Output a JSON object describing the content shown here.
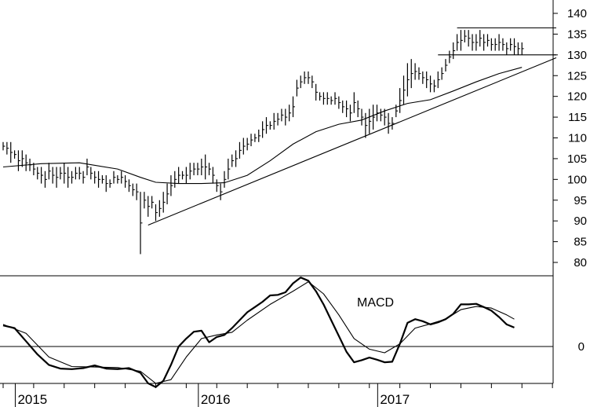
{
  "chart_data": [
    {
      "type": "line",
      "subtype": "ohlc-bar",
      "ylim": [
        76,
        141
      ],
      "yticks": [
        "140",
        "135",
        "130",
        "125",
        "120",
        "115",
        "110",
        "105",
        "100",
        "95",
        "90",
        "85",
        "80"
      ],
      "ytick_values": [
        140,
        135,
        130,
        125,
        120,
        115,
        110,
        105,
        100,
        95,
        90,
        85,
        80
      ],
      "x_range": [
        0,
        145
      ],
      "price_bars": [
        [
          0,
          107,
          109
        ],
        [
          1,
          106,
          109
        ],
        [
          2,
          104,
          109
        ],
        [
          3,
          105,
          107
        ],
        [
          4,
          102,
          107
        ],
        [
          5,
          103,
          107
        ],
        [
          6,
          102,
          106
        ],
        [
          7,
          102,
          105
        ],
        [
          8,
          101,
          104
        ],
        [
          9,
          100,
          103
        ],
        [
          10,
          99,
          103
        ],
        [
          11,
          98,
          102
        ],
        [
          12,
          100,
          104
        ],
        [
          13,
          99,
          103
        ],
        [
          14,
          98,
          103
        ],
        [
          15,
          100,
          103
        ],
        [
          16,
          99,
          104
        ],
        [
          17,
          98,
          103
        ],
        [
          18,
          99,
          102
        ],
        [
          19,
          100,
          103
        ],
        [
          20,
          100,
          103
        ],
        [
          21,
          99,
          102
        ],
        [
          22,
          101,
          105
        ],
        [
          23,
          100,
          103
        ],
        [
          24,
          99,
          102
        ],
        [
          25,
          98,
          102
        ],
        [
          26,
          99,
          101
        ],
        [
          27,
          97,
          101
        ],
        [
          28,
          98,
          100
        ],
        [
          29,
          99,
          102
        ],
        [
          30,
          99,
          101
        ],
        [
          31,
          99,
          102
        ],
        [
          32,
          98,
          101
        ],
        [
          33,
          97,
          100
        ],
        [
          34,
          96,
          99
        ],
        [
          35,
          95,
          99
        ],
        [
          36,
          82,
          97
        ],
        [
          37,
          93,
          97
        ],
        [
          38,
          91,
          96
        ],
        [
          39,
          93,
          96
        ],
        [
          40,
          90,
          94
        ],
        [
          41,
          91,
          95
        ],
        [
          42,
          92,
          97
        ],
        [
          43,
          94,
          99
        ],
        [
          44,
          96,
          101
        ],
        [
          45,
          98,
          102
        ],
        [
          46,
          99,
          103
        ],
        [
          47,
          100,
          102
        ],
        [
          48,
          99,
          103
        ],
        [
          49,
          100,
          104
        ],
        [
          50,
          101,
          104
        ],
        [
          51,
          101,
          104
        ],
        [
          52,
          101,
          105
        ],
        [
          53,
          100,
          106
        ],
        [
          54,
          101,
          104
        ],
        [
          55,
          99,
          103
        ],
        [
          56,
          97,
          100
        ],
        [
          57,
          95,
          99
        ],
        [
          58,
          98,
          102
        ],
        [
          59,
          100,
          105
        ],
        [
          60,
          103,
          106
        ],
        [
          61,
          103,
          107
        ],
        [
          62,
          105,
          109
        ],
        [
          63,
          106,
          110
        ],
        [
          64,
          107,
          110
        ],
        [
          65,
          108,
          111
        ],
        [
          66,
          109,
          111
        ],
        [
          67,
          109,
          112
        ],
        [
          68,
          110,
          114
        ],
        [
          69,
          111,
          115
        ],
        [
          70,
          112,
          114
        ],
        [
          71,
          112,
          116
        ],
        [
          72,
          113,
          116
        ],
        [
          73,
          114,
          117
        ],
        [
          74,
          113,
          117
        ],
        [
          75,
          114,
          118
        ],
        [
          76,
          115,
          120
        ],
        [
          77,
          120,
          124
        ],
        [
          78,
          122,
          125
        ],
        [
          79,
          123,
          126
        ],
        [
          80,
          123,
          126
        ],
        [
          81,
          122,
          125
        ],
        [
          82,
          119,
          123
        ],
        [
          83,
          119,
          121
        ],
        [
          84,
          118,
          121
        ],
        [
          85,
          118,
          121
        ],
        [
          86,
          118,
          120
        ],
        [
          87,
          118,
          121
        ],
        [
          88,
          117,
          120
        ],
        [
          89,
          116,
          119
        ],
        [
          90,
          115,
          119
        ],
        [
          91,
          114,
          118
        ],
        [
          92,
          116,
          121
        ],
        [
          93,
          115,
          119
        ],
        [
          94,
          113,
          117
        ],
        [
          95,
          110,
          116
        ],
        [
          96,
          111,
          117
        ],
        [
          97,
          112,
          118
        ],
        [
          98,
          114,
          118
        ],
        [
          99,
          114,
          117
        ],
        [
          100,
          113,
          117
        ],
        [
          101,
          111,
          116
        ],
        [
          102,
          112,
          115
        ],
        [
          103,
          115,
          118
        ],
        [
          104,
          116,
          122
        ],
        [
          105,
          118,
          125
        ],
        [
          106,
          120,
          128
        ],
        [
          107,
          122,
          129
        ],
        [
          108,
          124,
          128
        ],
        [
          109,
          124,
          127
        ],
        [
          110,
          123,
          126
        ],
        [
          111,
          122,
          126
        ],
        [
          112,
          121,
          125
        ],
        [
          113,
          121,
          124
        ],
        [
          114,
          122,
          126
        ],
        [
          115,
          124,
          127
        ],
        [
          116,
          126,
          129
        ],
        [
          117,
          128,
          131
        ],
        [
          118,
          129,
          133
        ],
        [
          119,
          131,
          135
        ],
        [
          120,
          131,
          136
        ],
        [
          121,
          133,
          136
        ],
        [
          122,
          132,
          136
        ],
        [
          123,
          131,
          135
        ],
        [
          124,
          131,
          135
        ],
        [
          125,
          132,
          136
        ],
        [
          126,
          131,
          135
        ],
        [
          127,
          132,
          135
        ],
        [
          128,
          131,
          134
        ],
        [
          129,
          131,
          134
        ],
        [
          130,
          131,
          135
        ],
        [
          131,
          131,
          134
        ],
        [
          132,
          130,
          133
        ],
        [
          133,
          131,
          134
        ],
        [
          134,
          130,
          134
        ],
        [
          135,
          130,
          133
        ],
        [
          136,
          130,
          133
        ]
      ],
      "moving_average": [
        [
          0,
          103
        ],
        [
          10,
          103.8
        ],
        [
          20,
          104
        ],
        [
          30,
          102.5
        ],
        [
          36,
          100.5
        ],
        [
          40,
          99.3
        ],
        [
          46,
          99
        ],
        [
          52,
          99
        ],
        [
          58,
          99.2
        ],
        [
          64,
          101
        ],
        [
          70,
          104.5
        ],
        [
          76,
          108.5
        ],
        [
          82,
          111.5
        ],
        [
          88,
          113.3
        ],
        [
          94,
          114.3
        ],
        [
          100,
          116.5
        ],
        [
          106,
          118.3
        ],
        [
          112,
          119.2
        ],
        [
          118,
          121.3
        ],
        [
          124,
          123.5
        ],
        [
          130,
          125.5
        ],
        [
          136,
          127
        ]
      ],
      "trendline": [
        [
          38,
          89
        ],
        [
          145,
          129.3
        ]
      ],
      "channel_lines": [
        {
          "y": 136.5,
          "x": [
            119,
            145
          ]
        },
        {
          "y": 130,
          "x": [
            114,
            145
          ]
        }
      ]
    },
    {
      "type": "line",
      "subtype": "macd",
      "annotation": "MACD",
      "yticks": [
        "0"
      ],
      "ytick_values": [
        0
      ],
      "ylim": [
        -9.5,
        15.5
      ],
      "x_range": [
        0,
        145
      ],
      "series": [
        {
          "values": [
            [
              0,
              4
            ],
            [
              3,
              3.5
            ],
            [
              6,
              1
            ],
            [
              9,
              -1.5
            ],
            [
              12,
              -3.5
            ],
            [
              15,
              -4.2
            ],
            [
              18,
              -4.3
            ],
            [
              21,
              -4.1
            ],
            [
              24,
              -3.6
            ],
            [
              27,
              -4.2
            ],
            [
              30,
              -4.3
            ],
            [
              33,
              -4.1
            ],
            [
              36,
              -5
            ],
            [
              38,
              -7
            ],
            [
              40,
              -7.7
            ],
            [
              42,
              -6.5
            ],
            [
              44,
              -3.5
            ],
            [
              46,
              0
            ],
            [
              48,
              1.5
            ],
            [
              50,
              2.8
            ],
            [
              52,
              3
            ],
            [
              54,
              0.8
            ],
            [
              56,
              1.8
            ],
            [
              58,
              2.2
            ],
            [
              60,
              3.5
            ],
            [
              62,
              5
            ],
            [
              64,
              6.5
            ],
            [
              66,
              7.5
            ],
            [
              68,
              8.5
            ],
            [
              70,
              9.7
            ],
            [
              72,
              9.8
            ],
            [
              74,
              10.3
            ],
            [
              76,
              12
            ],
            [
              78,
              13.1
            ],
            [
              80,
              12.5
            ],
            [
              82,
              10.5
            ],
            [
              84,
              8
            ],
            [
              86,
              5
            ],
            [
              88,
              2
            ],
            [
              90,
              -1
            ],
            [
              92,
              -3
            ],
            [
              94,
              -2.6
            ],
            [
              96,
              -2.1
            ],
            [
              98,
              -2.5
            ],
            [
              100,
              -3
            ],
            [
              102,
              -2.9
            ],
            [
              104,
              0.5
            ],
            [
              106,
              4.5
            ],
            [
              108,
              5.2
            ],
            [
              110,
              4.8
            ],
            [
              112,
              4.2
            ],
            [
              114,
              4.6
            ],
            [
              116,
              5.2
            ],
            [
              118,
              6.2
            ],
            [
              120,
              8
            ],
            [
              122,
              8
            ],
            [
              124,
              8.1
            ],
            [
              126,
              7.5
            ],
            [
              128,
              6.8
            ],
            [
              130,
              5.6
            ],
            [
              132,
              4.2
            ],
            [
              134,
              3.6
            ]
          ]
        },
        {
          "values": [
            [
              0,
              4.2
            ],
            [
              6,
              2.5
            ],
            [
              12,
              -2
            ],
            [
              18,
              -3.8
            ],
            [
              24,
              -3.9
            ],
            [
              30,
              -4
            ],
            [
              36,
              -4.7
            ],
            [
              40,
              -7
            ],
            [
              44,
              -6.3
            ],
            [
              48,
              -2
            ],
            [
              52,
              1.5
            ],
            [
              56,
              2.2
            ],
            [
              60,
              2.7
            ],
            [
              64,
              5
            ],
            [
              70,
              8
            ],
            [
              76,
              10.5
            ],
            [
              80,
              12.3
            ],
            [
              84,
              10
            ],
            [
              88,
              6
            ],
            [
              92,
              1.5
            ],
            [
              96,
              -0.5
            ],
            [
              100,
              -1.2
            ],
            [
              104,
              0.5
            ],
            [
              108,
              3.5
            ],
            [
              112,
              4.3
            ],
            [
              116,
              5.2
            ],
            [
              120,
              7
            ],
            [
              124,
              7.6
            ],
            [
              128,
              7.3
            ],
            [
              132,
              6
            ],
            [
              134,
              5.2
            ]
          ]
        }
      ]
    }
  ],
  "x_axis": {
    "labels": [
      "2015",
      "2016",
      "2017"
    ],
    "label_positions": [
      4,
      52,
      99
    ],
    "minor_ticks": [
      0,
      8,
      16,
      24,
      32,
      40,
      48,
      56,
      64,
      72,
      80,
      88,
      96,
      104,
      112,
      120,
      128,
      136,
      144
    ]
  }
}
